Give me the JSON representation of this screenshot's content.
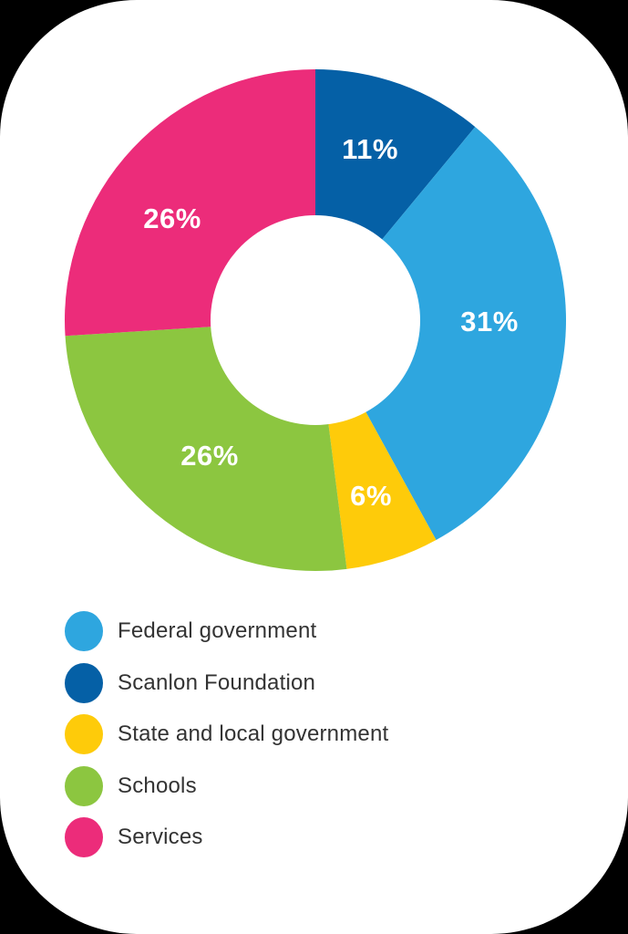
{
  "chart_data": {
    "type": "pie",
    "subtype": "donut",
    "title": "",
    "start_angle_deg": 0,
    "direction": "clockwise",
    "slices": [
      {
        "label": "Scanlon Foundation",
        "value": 11,
        "display": "11%",
        "color": "#0560A6"
      },
      {
        "label": "Federal government",
        "value": 31,
        "display": "31%",
        "color": "#2EA6DF"
      },
      {
        "label": "State and local government",
        "value": 6,
        "display": "6%",
        "color": "#FECB0A"
      },
      {
        "label": "Schools",
        "value": 26,
        "display": "26%",
        "color": "#8CC640"
      },
      {
        "label": "Services",
        "value": 26,
        "display": "26%",
        "color": "#EC2C7A"
      }
    ],
    "legend_position": "bottom",
    "legend": [
      {
        "label": "Federal government",
        "color": "#2EA6DF"
      },
      {
        "label": "Scanlon Foundation",
        "color": "#0560A6"
      },
      {
        "label": "State and local government",
        "color": "#FECB0A"
      },
      {
        "label": "Schools",
        "color": "#8CC640"
      },
      {
        "label": "Services",
        "color": "#EC2C7A"
      }
    ]
  },
  "labels": {
    "scanlon": "11%",
    "federal": "31%",
    "state": "6%",
    "schools": "26%",
    "services": "26%"
  },
  "legend": {
    "items": [
      {
        "label": "Federal government",
        "color": "#2EA6DF"
      },
      {
        "label": "Scanlon Foundation",
        "color": "#0560A6"
      },
      {
        "label": "State and local government",
        "color": "#FECB0A"
      },
      {
        "label": "Schools",
        "color": "#8CC640"
      },
      {
        "label": "Services",
        "color": "#EC2C7A"
      }
    ]
  }
}
